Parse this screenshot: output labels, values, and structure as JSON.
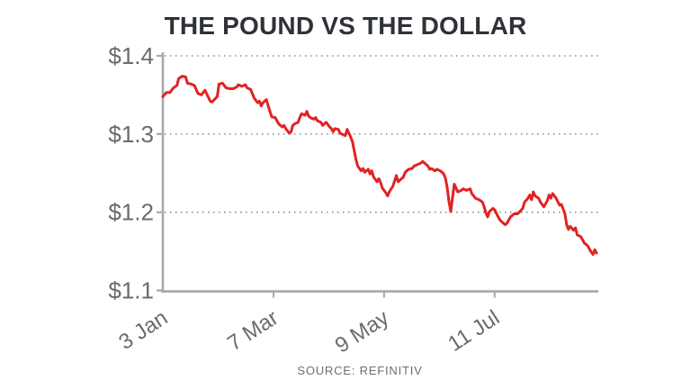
{
  "header": {
    "title": "THE POUND VS THE DOLLAR"
  },
  "footer": {
    "source": "SOURCE: REFINITIV"
  },
  "chart_data": {
    "type": "line",
    "title": "THE POUND VS THE DOLLAR",
    "source": "SOURCE: REFINITIV",
    "xlabel": "",
    "ylabel": "",
    "ylim": [
      1.1,
      1.4
    ],
    "x_range_days": [
      0,
      247
    ],
    "grid": "dotted-horizontal",
    "legend": "none",
    "y_ticks": [
      {
        "label": "$1.4",
        "value": 1.4
      },
      {
        "label": "$1.3",
        "value": 1.3
      },
      {
        "label": "$1.2",
        "value": 1.2
      },
      {
        "label": "$1.1",
        "value": 1.1
      }
    ],
    "x_ticks": [
      {
        "label": "3 Jan",
        "day": 0
      },
      {
        "label": "7 Mar",
        "day": 63
      },
      {
        "label": "9 May",
        "day": 126
      },
      {
        "label": "11 Jul",
        "day": 189
      }
    ],
    "colors": {
      "line": "#e12323",
      "axis": "#a8a8a8",
      "grid": "#8a8a8a",
      "tick_label": "#6b6b6b",
      "title": "#2e3238",
      "source_text": "#6e6e6e"
    },
    "series": [
      {
        "name": "Pound vs Dollar exchange rate",
        "unit": "USD per GBP",
        "x_days_from_start": [
          0,
          2,
          4,
          6,
          8,
          9,
          11,
          13,
          14,
          16,
          18,
          20,
          22,
          24,
          27,
          28,
          31,
          32,
          34,
          36,
          38,
          40,
          42,
          43,
          45,
          47,
          48,
          50,
          52,
          54,
          55,
          56,
          57,
          59,
          60,
          62,
          64,
          65,
          66,
          68,
          69,
          70,
          72,
          73,
          74,
          75,
          77,
          78,
          79,
          81,
          82,
          83,
          84,
          86,
          87,
          88,
          90,
          91,
          93,
          95,
          96,
          97,
          98,
          100,
          101,
          102,
          104,
          105,
          106,
          107,
          108,
          110,
          111,
          113,
          114,
          115,
          117,
          118,
          119,
          120,
          122,
          123,
          124,
          125,
          127,
          128,
          129,
          130,
          131,
          133,
          134,
          137,
          138,
          140,
          142,
          143,
          145,
          147,
          148,
          149,
          151,
          152,
          153,
          155,
          156,
          158,
          159,
          160,
          161,
          162,
          163,
          164,
          166,
          168,
          170,
          171,
          173,
          175,
          176,
          178,
          180,
          182,
          183,
          184,
          185,
          186,
          188,
          189,
          191,
          192,
          193,
          195,
          196,
          198,
          199,
          200,
          202,
          203,
          205,
          206,
          208,
          209,
          210,
          211,
          212,
          214,
          215,
          216,
          217,
          219,
          220,
          221,
          222,
          224,
          225,
          226,
          227,
          229,
          230,
          231,
          232,
          234,
          235,
          236,
          238,
          239,
          240,
          242,
          243,
          244,
          245,
          246,
          247
        ],
        "values": [
          1.348,
          1.353,
          1.353,
          1.359,
          1.362,
          1.371,
          1.374,
          1.373,
          1.365,
          1.364,
          1.362,
          1.352,
          1.35,
          1.356,
          1.342,
          1.341,
          1.348,
          1.364,
          1.365,
          1.359,
          1.358,
          1.358,
          1.36,
          1.363,
          1.361,
          1.363,
          1.359,
          1.357,
          1.346,
          1.34,
          1.342,
          1.336,
          1.34,
          1.344,
          1.336,
          1.322,
          1.321,
          1.317,
          1.313,
          1.309,
          1.311,
          1.307,
          1.301,
          1.303,
          1.311,
          1.313,
          1.315,
          1.321,
          1.326,
          1.324,
          1.329,
          1.323,
          1.321,
          1.319,
          1.321,
          1.317,
          1.315,
          1.311,
          1.315,
          1.309,
          1.307,
          1.303,
          1.307,
          1.306,
          1.301,
          1.3,
          1.298,
          1.306,
          1.301,
          1.296,
          1.29,
          1.267,
          1.259,
          1.253,
          1.256,
          1.251,
          1.255,
          1.249,
          1.253,
          1.245,
          1.239,
          1.243,
          1.238,
          1.231,
          1.225,
          1.221,
          1.226,
          1.23,
          1.233,
          1.247,
          1.239,
          1.245,
          1.251,
          1.255,
          1.256,
          1.259,
          1.261,
          1.263,
          1.265,
          1.263,
          1.259,
          1.255,
          1.256,
          1.253,
          1.255,
          1.253,
          1.251,
          1.249,
          1.243,
          1.231,
          1.213,
          1.201,
          1.236,
          1.226,
          1.228,
          1.23,
          1.228,
          1.23,
          1.224,
          1.218,
          1.216,
          1.213,
          1.207,
          1.199,
          1.194,
          1.201,
          1.205,
          1.203,
          1.194,
          1.19,
          1.188,
          1.184,
          1.186,
          1.194,
          1.196,
          1.198,
          1.198,
          1.2,
          1.205,
          1.213,
          1.218,
          1.222,
          1.216,
          1.226,
          1.221,
          1.218,
          1.213,
          1.21,
          1.207,
          1.215,
          1.222,
          1.218,
          1.224,
          1.218,
          1.213,
          1.209,
          1.21,
          1.198,
          1.184,
          1.178,
          1.182,
          1.177,
          1.18,
          1.171,
          1.169,
          1.165,
          1.161,
          1.157,
          1.153,
          1.149,
          1.146,
          1.152,
          1.148
        ]
      }
    ]
  }
}
